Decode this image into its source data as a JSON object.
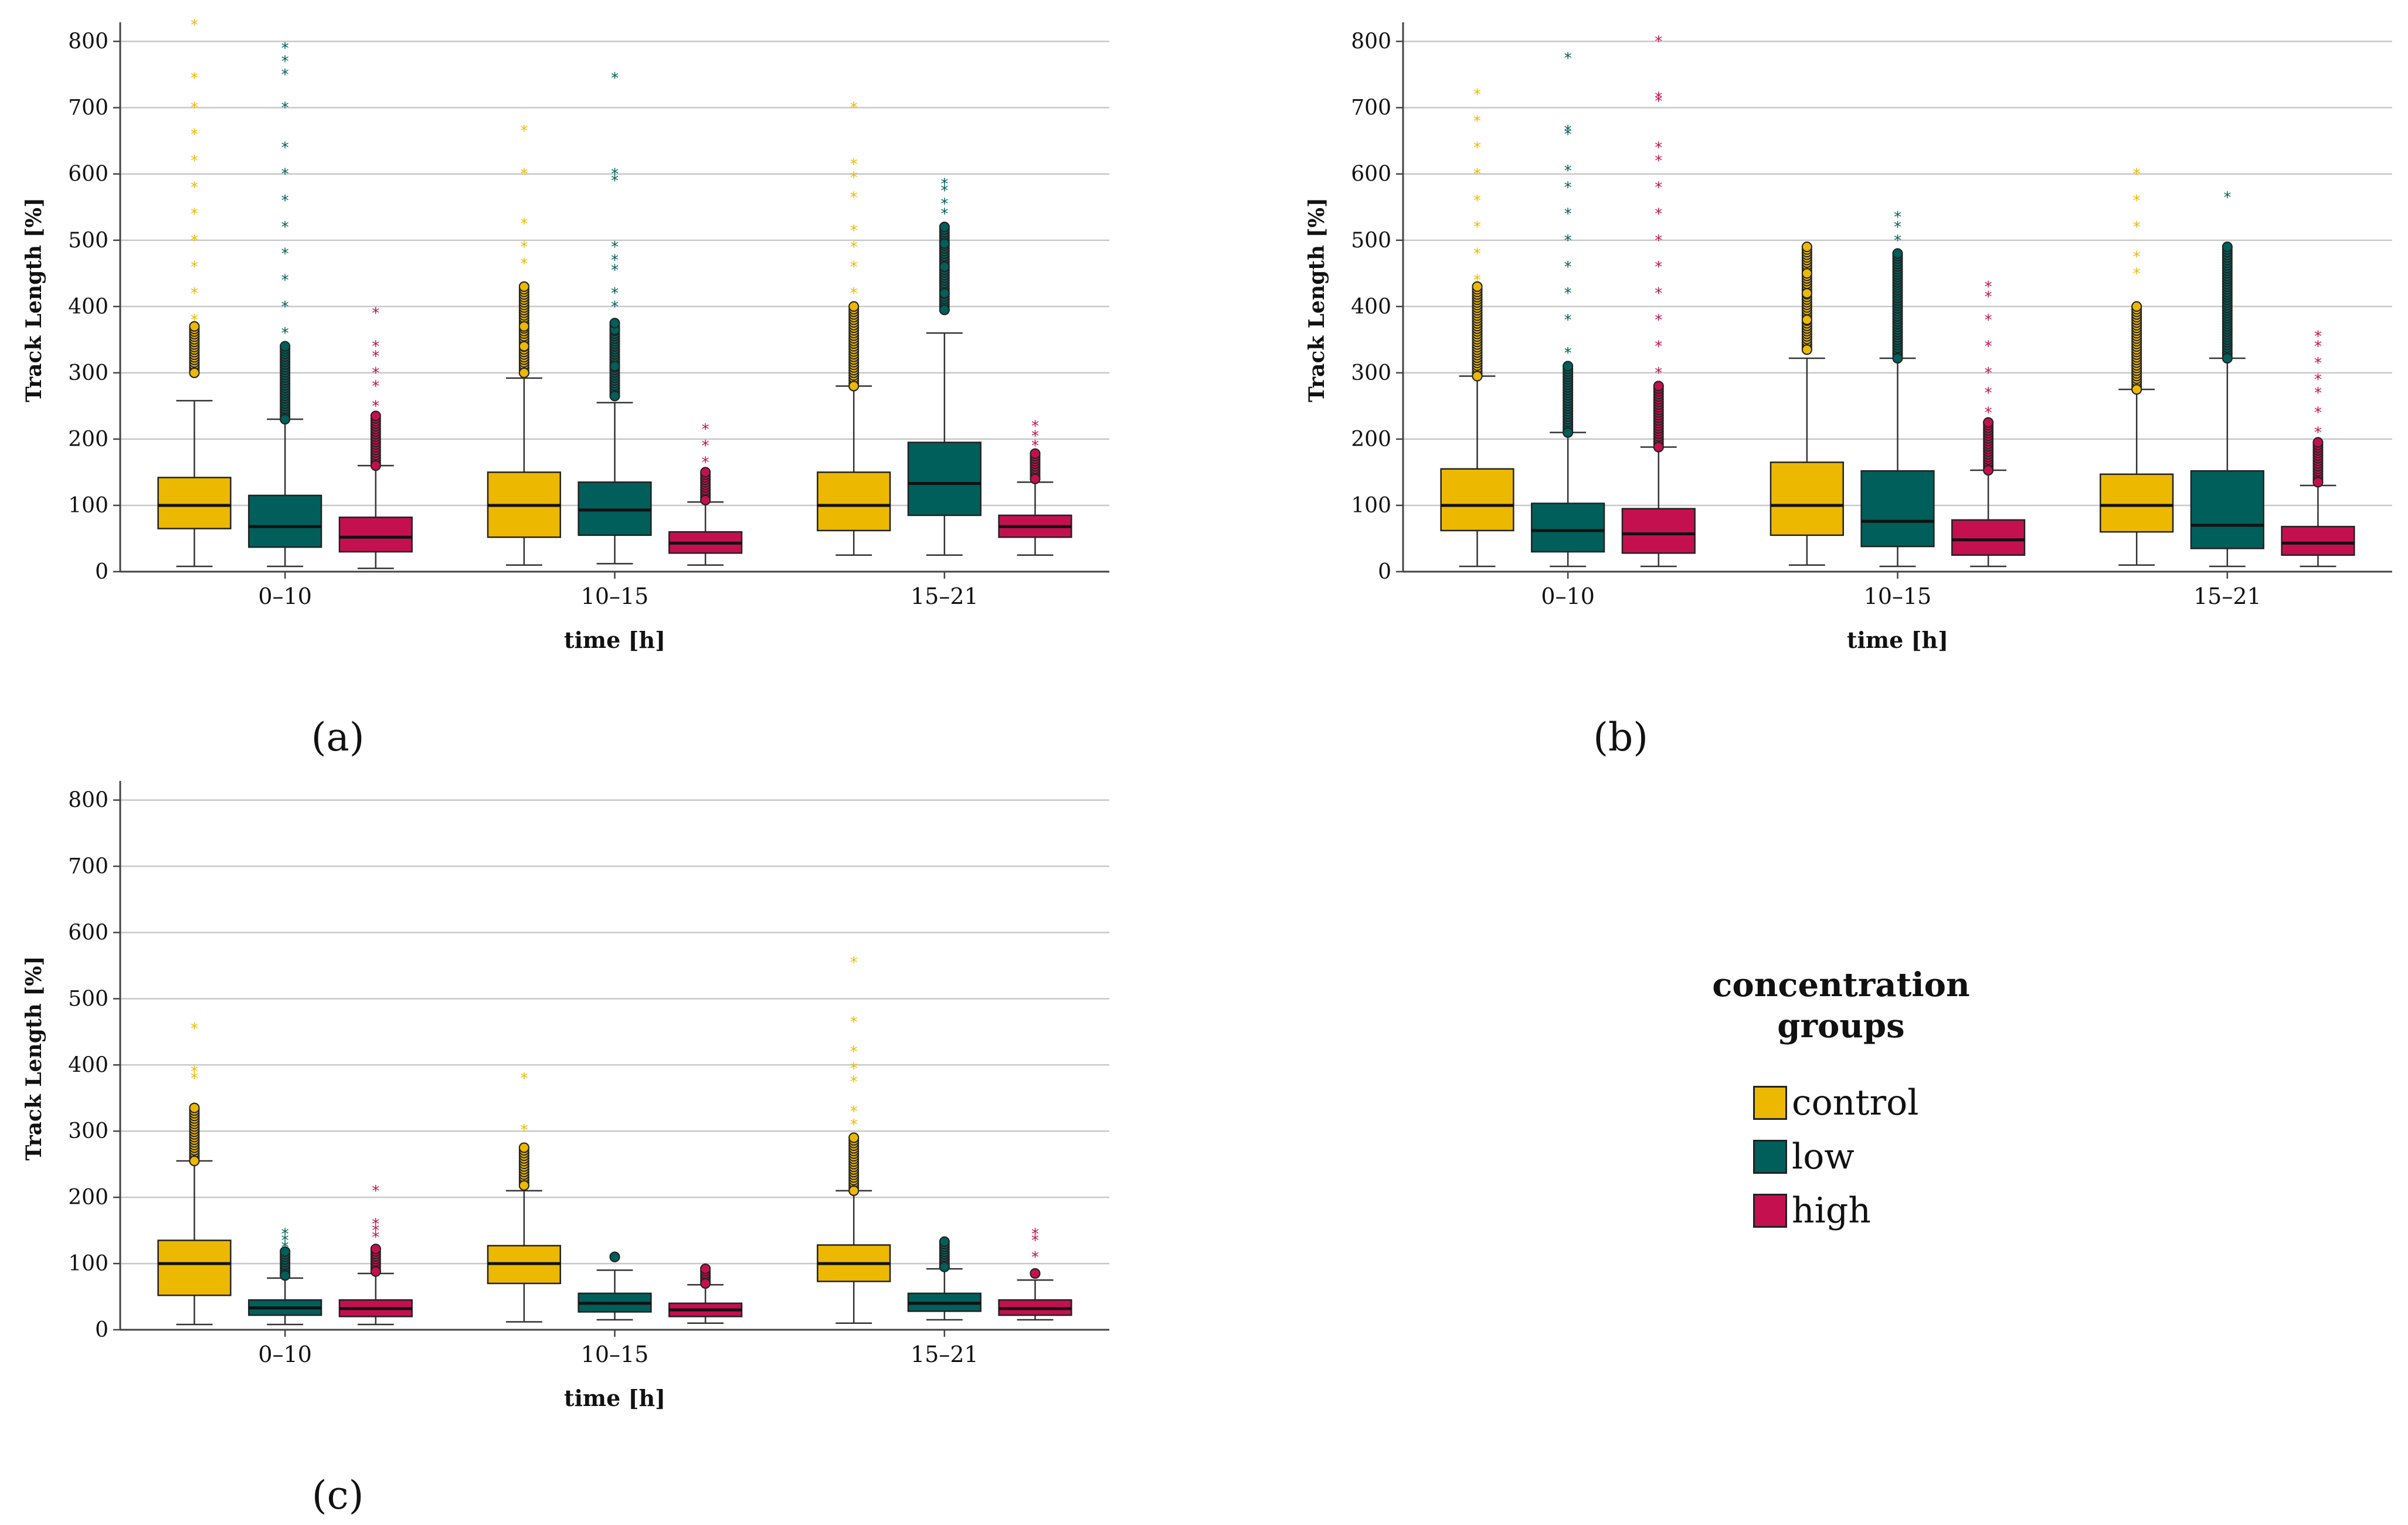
{
  "colors": {
    "control": "#EDB800",
    "low": "#005F5A",
    "high": "#C4104F"
  },
  "legend": {
    "title_line1": "concentration",
    "title_line2": "groups",
    "items": [
      {
        "label": "control",
        "color": "#EDB800"
      },
      {
        "label": "low",
        "color": "#005F5A"
      },
      {
        "label": "high",
        "color": "#C4104F"
      }
    ]
  },
  "chart_data": [
    {
      "type": "boxplot",
      "panel_label": "(a)",
      "xlabel": "time [h]",
      "ylabel": "Track Length [%]",
      "ylim": [
        0,
        820
      ],
      "yticks": [
        0,
        100,
        200,
        300,
        400,
        500,
        600,
        700,
        800
      ],
      "categories": [
        "0–10",
        "10–15",
        "15–21"
      ],
      "grid": true,
      "series": [
        {
          "name": "control",
          "color": "#EDB800",
          "boxes": [
            {
              "min": 8,
              "q1": 65,
              "median": 100,
              "q3": 142,
              "max": 258,
              "outliers": [
                300,
                370
              ],
              "extremes": [
                380,
                420,
                460,
                500,
                540,
                580,
                620,
                660,
                700,
                745,
                825
              ]
            },
            {
              "min": 10,
              "q1": 52,
              "median": 100,
              "q3": 150,
              "max": 292,
              "outliers": [
                300,
                340,
                370,
                430
              ],
              "extremes": [
                465,
                490,
                525,
                600,
                665
              ]
            },
            {
              "min": 25,
              "q1": 62,
              "median": 100,
              "q3": 150,
              "max": 280,
              "outliers": [
                280,
                400
              ],
              "extremes": [
                420,
                460,
                490,
                515,
                565,
                595,
                615,
                700
              ]
            }
          ]
        },
        {
          "name": "low",
          "color": "#005F5A",
          "boxes": [
            {
              "min": 8,
              "q1": 37,
              "median": 68,
              "q3": 115,
              "max": 230,
              "outliers": [
                230,
                340
              ],
              "extremes": [
                360,
                400,
                440,
                480,
                520,
                560,
                600,
                640,
                700,
                750,
                770,
                790
              ]
            },
            {
              "min": 12,
              "q1": 55,
              "median": 93,
              "q3": 135,
              "max": 255,
              "outliers": [
                265,
                310,
                365,
                375
              ],
              "extremes": [
                400,
                420,
                455,
                470,
                490,
                590,
                600,
                745
              ]
            },
            {
              "min": 25,
              "q1": 85,
              "median": 133,
              "q3": 195,
              "max": 360,
              "outliers": [
                395,
                420,
                460,
                495,
                520
              ],
              "extremes": [
                540,
                555,
                575,
                585
              ]
            }
          ]
        },
        {
          "name": "high",
          "color": "#C4104F",
          "boxes": [
            {
              "min": 5,
              "q1": 30,
              "median": 52,
              "q3": 82,
              "max": 160,
              "outliers": [
                160,
                235
              ],
              "extremes": [
                250,
                280,
                300,
                325,
                340,
                390
              ]
            },
            {
              "min": 10,
              "q1": 28,
              "median": 43,
              "q3": 60,
              "max": 105,
              "outliers": [
                108,
                150
              ],
              "extremes": [
                165,
                190,
                215
              ]
            },
            {
              "min": 25,
              "q1": 52,
              "median": 68,
              "q3": 85,
              "max": 135,
              "outliers": [
                140,
                178
              ],
              "extremes": [
                190,
                205,
                220
              ]
            }
          ]
        }
      ]
    },
    {
      "type": "boxplot",
      "panel_label": "(b)",
      "xlabel": "time [h]",
      "ylabel": "Track Length [%]",
      "ylim": [
        0,
        820
      ],
      "yticks": [
        0,
        100,
        200,
        300,
        400,
        500,
        600,
        700,
        800
      ],
      "categories": [
        "0–10",
        "10–15",
        "15–21"
      ],
      "grid": true,
      "series": [
        {
          "name": "control",
          "color": "#EDB800",
          "boxes": [
            {
              "min": 8,
              "q1": 62,
              "median": 100,
              "q3": 155,
              "max": 295,
              "outliers": [
                295,
                430
              ],
              "extremes": [
                440,
                480,
                520,
                560,
                600,
                640,
                680,
                720
              ]
            },
            {
              "min": 10,
              "q1": 55,
              "median": 100,
              "q3": 165,
              "max": 322,
              "outliers": [
                335,
                380,
                420,
                450,
                490
              ],
              "extremes": []
            },
            {
              "min": 10,
              "q1": 60,
              "median": 100,
              "q3": 147,
              "max": 275,
              "outliers": [
                275,
                400
              ],
              "extremes": [
                450,
                475,
                520,
                560,
                600
              ]
            }
          ]
        },
        {
          "name": "low",
          "color": "#005F5A",
          "boxes": [
            {
              "min": 8,
              "q1": 30,
              "median": 62,
              "q3": 103,
              "max": 210,
              "outliers": [
                210,
                310
              ],
              "extremes": [
                330,
                380,
                420,
                460,
                500,
                540,
                580,
                605,
                660,
                665,
                775
              ]
            },
            {
              "min": 8,
              "q1": 38,
              "median": 76,
              "q3": 152,
              "max": 322,
              "outliers": [
                322,
                480
              ],
              "extremes": [
                500,
                520,
                535
              ]
            },
            {
              "min": 8,
              "q1": 35,
              "median": 70,
              "q3": 152,
              "max": 322,
              "outliers": [
                322,
                490
              ],
              "extremes": [
                565
              ]
            }
          ]
        },
        {
          "name": "high",
          "color": "#C4104F",
          "boxes": [
            {
              "min": 8,
              "q1": 28,
              "median": 57,
              "q3": 95,
              "max": 188,
              "outliers": [
                188,
                280
              ],
              "extremes": [
                300,
                340,
                380,
                420,
                460,
                500,
                540,
                580,
                620,
                640,
                710,
                715,
                800
              ]
            },
            {
              "min": 8,
              "q1": 25,
              "median": 48,
              "q3": 78,
              "max": 153,
              "outliers": [
                153,
                225
              ],
              "extremes": [
                240,
                270,
                300,
                340,
                380,
                415,
                430
              ]
            },
            {
              "min": 8,
              "q1": 25,
              "median": 43,
              "q3": 68,
              "max": 130,
              "outliers": [
                135,
                195
              ],
              "extremes": [
                210,
                240,
                270,
                290,
                315,
                340,
                355
              ]
            }
          ]
        }
      ]
    },
    {
      "type": "boxplot",
      "panel_label": "(c)",
      "xlabel": "time [h]",
      "ylabel": "Track Length [%]",
      "ylim": [
        0,
        820
      ],
      "yticks": [
        0,
        100,
        200,
        300,
        400,
        500,
        600,
        700,
        800
      ],
      "categories": [
        "0–10",
        "10–15",
        "15–21"
      ],
      "grid": true,
      "series": [
        {
          "name": "control",
          "color": "#EDB800",
          "boxes": [
            {
              "min": 8,
              "q1": 52,
              "median": 100,
              "q3": 135,
              "max": 255,
              "outliers": [
                255,
                335
              ],
              "extremes": [
                380,
                390,
                455
              ]
            },
            {
              "min": 12,
              "q1": 70,
              "median": 100,
              "q3": 127,
              "max": 210,
              "outliers": [
                218,
                275
              ],
              "extremes": [
                302,
                380
              ]
            },
            {
              "min": 10,
              "q1": 73,
              "median": 100,
              "q3": 128,
              "max": 210,
              "outliers": [
                210,
                290
              ],
              "extremes": [
                310,
                330,
                375,
                395,
                420,
                465,
                555
              ]
            }
          ]
        },
        {
          "name": "low",
          "color": "#005F5A",
          "boxes": [
            {
              "min": 8,
              "q1": 22,
              "median": 33,
              "q3": 45,
              "max": 78,
              "outliers": [
                82,
                118
              ],
              "extremes": [
                125,
                135,
                145
              ]
            },
            {
              "min": 15,
              "q1": 27,
              "median": 40,
              "q3": 55,
              "max": 90,
              "outliers": [
                110
              ],
              "extremes": []
            },
            {
              "min": 15,
              "q1": 28,
              "median": 40,
              "q3": 55,
              "max": 92,
              "outliers": [
                95,
                133
              ],
              "extremes": []
            }
          ]
        },
        {
          "name": "high",
          "color": "#C4104F",
          "boxes": [
            {
              "min": 8,
              "q1": 20,
              "median": 32,
              "q3": 45,
              "max": 85,
              "outliers": [
                88,
                122
              ],
              "extremes": [
                140,
                150,
                160,
                210
              ]
            },
            {
              "min": 10,
              "q1": 20,
              "median": 30,
              "q3": 40,
              "max": 68,
              "outliers": [
                70,
                92
              ],
              "extremes": []
            },
            {
              "min": 15,
              "q1": 22,
              "median": 32,
              "q3": 45,
              "max": 75,
              "outliers": [
                85
              ],
              "extremes": [
                110,
                135,
                145
              ]
            }
          ]
        }
      ]
    }
  ]
}
